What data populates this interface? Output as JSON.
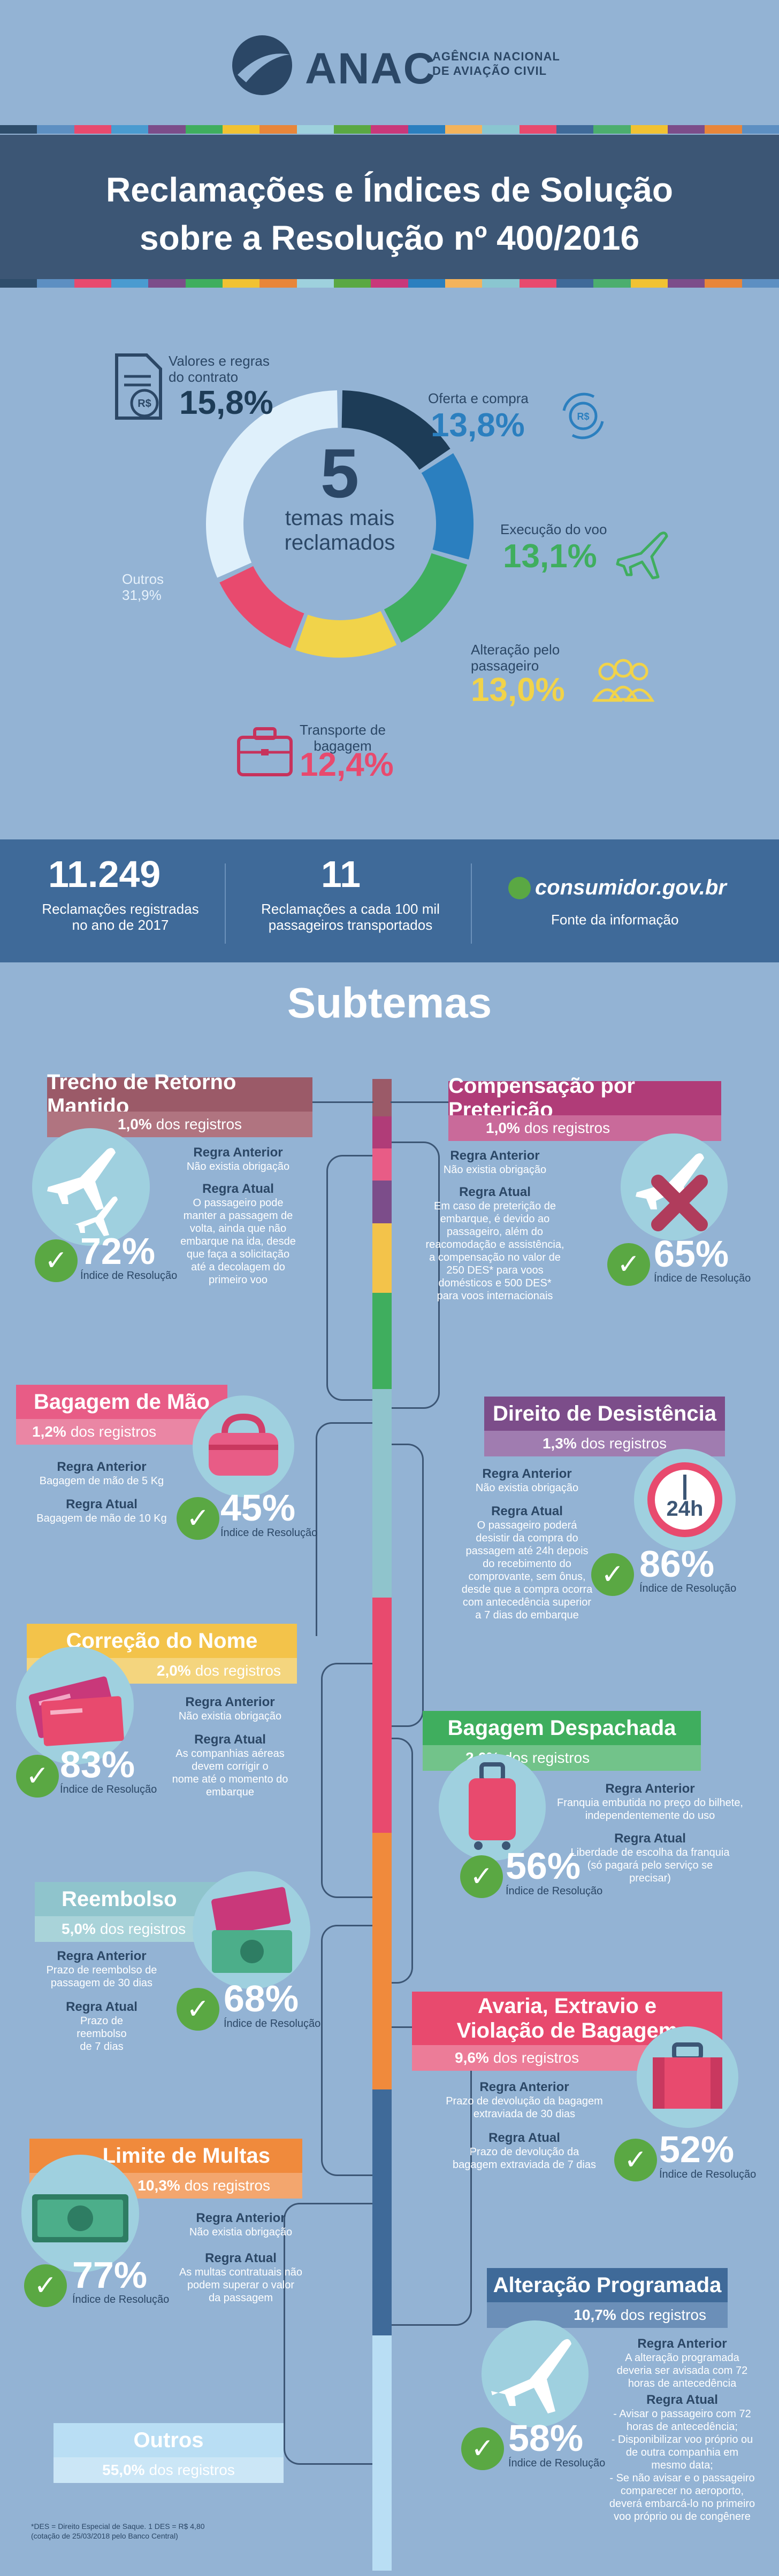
{
  "logo": {
    "name": "ANAC",
    "sub_line1": "AGÊNCIA NACIONAL",
    "sub_line2": "DE AVIAÇÃO CIVIL"
  },
  "title": {
    "line1": "Reclamações e Índices de Solução",
    "line2": "sobre a Resolução nº 400/2016"
  },
  "stripe_colors": [
    "#2e4d6b",
    "#5d8fc2",
    "#e84a6e",
    "#4a9bd0",
    "#7c4d8a",
    "#3fae5e",
    "#f1c232",
    "#e8863a",
    "#9ed1dd",
    "#5aa843",
    "#c9387a",
    "#2b7fbf",
    "#f3b35b",
    "#8ac6d0",
    "#e84a6e",
    "#3f6a99",
    "#4cae6e",
    "#f1c232",
    "#7c4d8a",
    "#e8863a",
    "#5d8fc2"
  ],
  "donut": {
    "center_number": "5",
    "center_line1": "temas mais",
    "center_line2": "reclamados",
    "topics": [
      {
        "label_line1": "Valores e regras",
        "label_line2": "do contrato",
        "pct": "15,8%",
        "color": "#1d3c57"
      },
      {
        "label_line1": "Oferta e compra",
        "label_line2": "",
        "pct": "13,8%",
        "color": "#2b7fbf"
      },
      {
        "label_line1": "Execução do voo",
        "label_line2": "",
        "pct": "13,1%",
        "color": "#3fae5e"
      },
      {
        "label_line1": "Alteração pelo",
        "label_line2": "passageiro",
        "pct": "13,0%",
        "color": "#f1d34a"
      },
      {
        "label_line1": "Transporte de",
        "label_line2": "bagagem",
        "pct": "12,4%",
        "color": "#e84a6e"
      },
      {
        "label_line1": "Outros",
        "label_line2": "",
        "pct": "31,9%",
        "color": "#dff0fb"
      }
    ],
    "values": [
      15.8,
      13.8,
      13.1,
      13.0,
      12.4,
      31.9
    ]
  },
  "stats": {
    "num1": "11.249",
    "txt1_line1": "Reclamações registradas",
    "txt1_line2": "no ano de 2017",
    "num2": "11",
    "txt2_line1": "Reclamações a cada 100 mil",
    "txt2_line2": "passageiros transportados",
    "source_logo": "consumidor.gov.br",
    "source_label": "Fonte da informação"
  },
  "subtemas_title": "Subtemas",
  "dos_registros": "dos registros",
  "indice": {
    "line1": "Índice de Resolução"
  },
  "regra_anterior": "Regra Anterior",
  "regra_atual": "Regra Atual",
  "cards": {
    "trecho": {
      "title": "Trecho de Retorno Mantido",
      "pct": "1,0%",
      "ant": "Não existia obrigação",
      "atual": [
        "O passageiro pode",
        "manter a passagem de",
        "volta, ainda que não",
        "embarque na ida, desde",
        "que faça a solicitação",
        "até a decolagem do",
        "primeiro voo"
      ],
      "res": "72%"
    },
    "compensacao": {
      "title": "Compensação por Preterição",
      "pct": "1,0%",
      "ant": "Não existia obrigação",
      "atual": [
        "Em caso de preterição de",
        "embarque, é devido ao",
        "passageiro, além do",
        "reacomodação e assistência,",
        "a compensação no valor de",
        "250 DES* para voos",
        "domésticos e 500 DES*",
        "para voos internacionais"
      ],
      "res": "65%"
    },
    "bagagem_mao": {
      "title": "Bagagem de Mão",
      "pct": "1,2%",
      "ant": "Bagagem de mão de 5 Kg",
      "atual": [
        "Bagagem de mão de 10 Kg"
      ],
      "res": "45%"
    },
    "desistencia": {
      "title": "Direito de Desistência",
      "pct": "1,3%",
      "ant": "Não existia obrigação",
      "atual": [
        "O passageiro poderá",
        "desistir da compra do",
        "passagem até 24h depois",
        "do recebimento do",
        "comprovante, sem ônus,",
        "desde que a compra ocorra",
        "com antecedência superior",
        "a 7 dias do embarque"
      ],
      "res": "86%",
      "clock": "24h"
    },
    "correcao": {
      "title": "Correção do Nome",
      "pct": "2,0%",
      "ant": "Não existia obrigação",
      "atual": [
        "As companhias aéreas",
        "devem corrigir o",
        "nome até o momento do embarque"
      ],
      "res": "83%"
    },
    "despachada": {
      "title": "Bagagem Despachada",
      "pct": "2,6%",
      "ant": [
        "Franquia embutida no preço do bilhete,",
        "independentemente do uso"
      ],
      "atual": [
        "Liberdade de escolha da franquia",
        "(só pagará pelo serviço se",
        "precisar)"
      ],
      "res": "56%"
    },
    "reembolso": {
      "title": "Reembolso",
      "pct": "5,0%",
      "ant": [
        "Prazo de reembolso de",
        "passagem de 30 dias"
      ],
      "atual": [
        "Prazo de",
        "reembolso",
        "de 7 dias"
      ],
      "res": "68%"
    },
    "avaria": {
      "title_line1": "Avaria, Extravio e",
      "title_line2": "Violação de Bagagem",
      "pct": "9,6%",
      "ant": [
        "Prazo de devolução da bagagem",
        "extraviada de 30 dias"
      ],
      "atual": [
        "Prazo de devolução da",
        "bagagem extraviada de 7 dias"
      ],
      "res": "52%"
    },
    "multas": {
      "title": "Limite de Multas",
      "pct": "10,3%",
      "ant": "Não existia obrigação",
      "atual": [
        "As multas contratuais não",
        "podem superar o valor",
        "da passagem"
      ],
      "res": "77%"
    },
    "alteracao": {
      "title": "Alteração Programada",
      "pct": "10,7%",
      "ant": [
        "A alteração programada",
        "deveria ser avisada com 72",
        "horas de antecedência"
      ],
      "atual": [
        "- Avisar o passageiro com 72",
        "horas de antecedência;",
        "- Disponibilizar voo próprio ou",
        "de outra companhia em",
        "mesmo data;",
        "- Se não avisar e o passageiro",
        "comparecer no aeroporto,",
        "deverá embarcá-lo no primeiro",
        "voo próprio ou de congênere"
      ],
      "res": "58%"
    },
    "outros": {
      "title": "Outros",
      "pct": "55,0%"
    }
  },
  "footnote": [
    "*DES = Direito Especial de Saque. 1 DES = R$ 4,80",
    "(cotação de 25/03/2018 pelo Banco Central)"
  ]
}
